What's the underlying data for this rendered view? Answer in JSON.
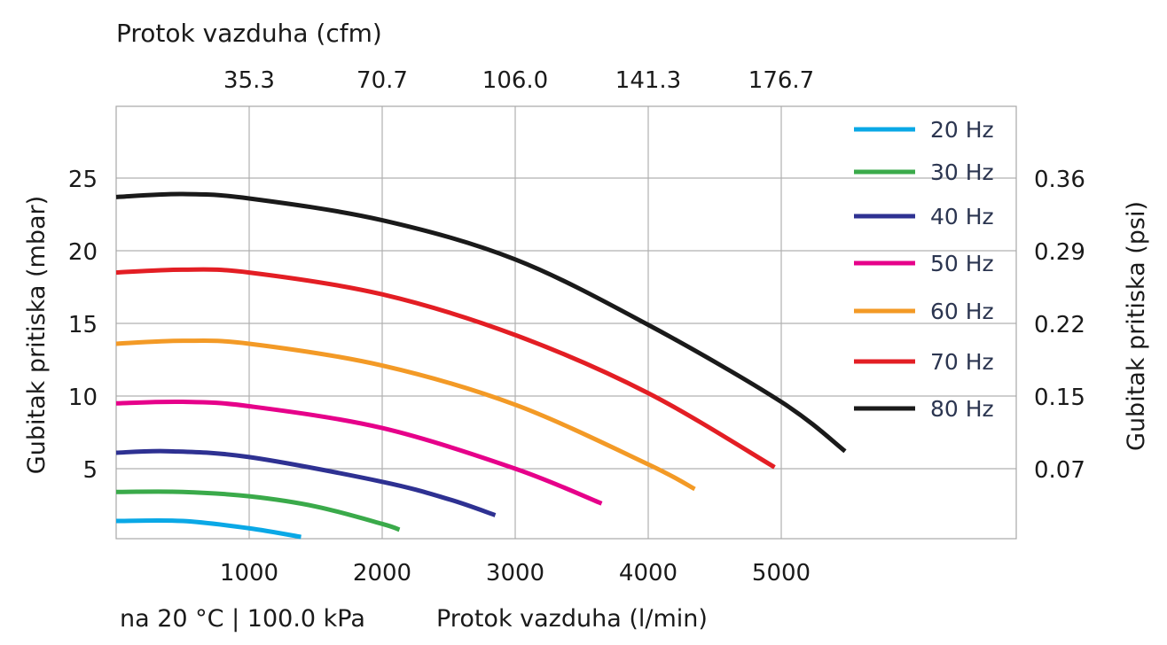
{
  "chart_data": {
    "type": "line",
    "top_axis_title": "Protok vazduha (cfm)",
    "top_ticks": [
      {
        "x": 1000,
        "label": "35.3"
      },
      {
        "x": 2000,
        "label": "70.7"
      },
      {
        "x": 3000,
        "label": "106.0"
      },
      {
        "x": 4000,
        "label": "141.3"
      },
      {
        "x": 5000,
        "label": "176.7"
      }
    ],
    "xlabel": "Protok vazduha (l/min)",
    "ylabel": "Gubitak pritiska (mbar)",
    "y2label": "Gubitak pritiska (psi)",
    "footnote": "na 20 °C | 100.0 kPa",
    "xlim": [
      0,
      6767
    ],
    "ylim": [
      0,
      29.8
    ],
    "x_ticks": [
      {
        "x": 1000,
        "label": "1000"
      },
      {
        "x": 2000,
        "label": "2000"
      },
      {
        "x": 3000,
        "label": "3000"
      },
      {
        "x": 4000,
        "label": "4000"
      },
      {
        "x": 5000,
        "label": "5000"
      }
    ],
    "y_ticks": [
      {
        "y": 5,
        "label": "5"
      },
      {
        "y": 10,
        "label": "10"
      },
      {
        "y": 15,
        "label": "15"
      },
      {
        "y": 20,
        "label": "20"
      },
      {
        "y": 25,
        "label": "25"
      }
    ],
    "y2_ticks": [
      {
        "y": 5,
        "label": "0.07"
      },
      {
        "y": 10,
        "label": "0.15"
      },
      {
        "y": 15,
        "label": "0.22"
      },
      {
        "y": 20,
        "label": "0.29"
      },
      {
        "y": 25,
        "label": "0.36"
      }
    ],
    "grid": true,
    "legend_position": "top-right",
    "series": [
      {
        "name": "20 Hz",
        "color": "#0aa8e6",
        "x": [
          0,
          500,
          1000,
          1390
        ],
        "y": [
          1.4,
          1.4,
          0.9,
          0.3
        ]
      },
      {
        "name": "30 Hz",
        "color": "#3aaa4a",
        "x": [
          0,
          500,
          1000,
          1500,
          2000,
          2130
        ],
        "y": [
          3.4,
          3.4,
          3.1,
          2.4,
          1.2,
          0.8
        ]
      },
      {
        "name": "40 Hz",
        "color": "#2e3192",
        "x": [
          0,
          400,
          1000,
          2000,
          2500,
          2850
        ],
        "y": [
          6.1,
          6.2,
          5.8,
          4.1,
          2.9,
          1.8
        ]
      },
      {
        "name": "50 Hz",
        "color": "#e6008a",
        "x": [
          0,
          500,
          1000,
          2000,
          3000,
          3650
        ],
        "y": [
          9.5,
          9.6,
          9.3,
          7.8,
          5.0,
          2.6
        ]
      },
      {
        "name": "60 Hz",
        "color": "#f39a26",
        "x": [
          0,
          500,
          1000,
          2000,
          3000,
          4000,
          4350
        ],
        "y": [
          13.6,
          13.8,
          13.6,
          12.1,
          9.4,
          5.3,
          3.6
        ]
      },
      {
        "name": "70 Hz",
        "color": "#e31e24",
        "x": [
          0,
          500,
          1000,
          2000,
          3000,
          4000,
          4950
        ],
        "y": [
          18.5,
          18.7,
          18.5,
          17.0,
          14.2,
          10.2,
          5.1
        ]
      },
      {
        "name": "80 Hz",
        "color": "#1a1a1a",
        "x": [
          0,
          500,
          1000,
          2000,
          3000,
          4000,
          5000,
          5480
        ],
        "y": [
          23.7,
          23.9,
          23.6,
          22.1,
          19.4,
          14.9,
          9.6,
          6.2
        ]
      }
    ]
  }
}
